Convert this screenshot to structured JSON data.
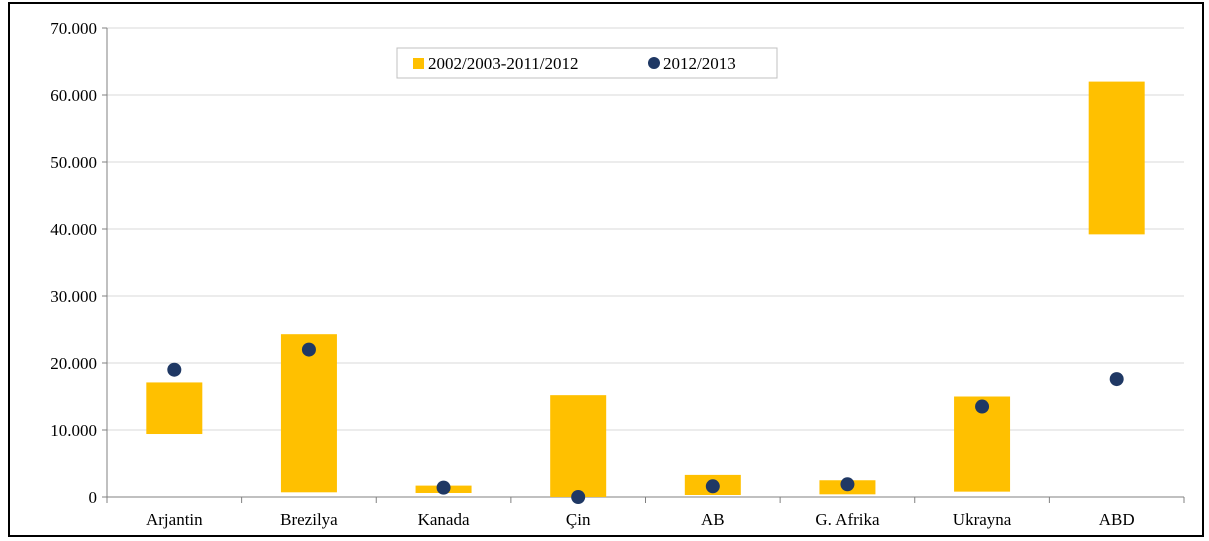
{
  "chart_data": {
    "type": "bar",
    "categories": [
      "Arjantin",
      "Brezilya",
      "Kanada",
      "Çin",
      "AB",
      "G. Afrika",
      "Ukrayna",
      "ABD"
    ],
    "y_ticks": [
      "0",
      "10.000",
      "20.000",
      "30.000",
      "40.000",
      "50.000",
      "60.000",
      "70.000"
    ],
    "ylim": [
      0,
      70000
    ],
    "grid": true,
    "legend_placement": "top-center",
    "series": [
      {
        "name": "2002/2003-2011/2012",
        "kind": "floating-bar",
        "color": "#FFC000",
        "ranges": [
          [
            9400,
            17100
          ],
          [
            700,
            24300
          ],
          [
            600,
            1700
          ],
          [
            0,
            15200
          ],
          [
            300,
            3300
          ],
          [
            400,
            2500
          ],
          [
            800,
            15000
          ],
          [
            39200,
            62000
          ]
        ]
      },
      {
        "name": "2012/2013",
        "kind": "point",
        "color": "#1F3864",
        "values": [
          19000,
          22000,
          1400,
          0,
          1600,
          1900,
          13500,
          17600
        ]
      }
    ]
  }
}
